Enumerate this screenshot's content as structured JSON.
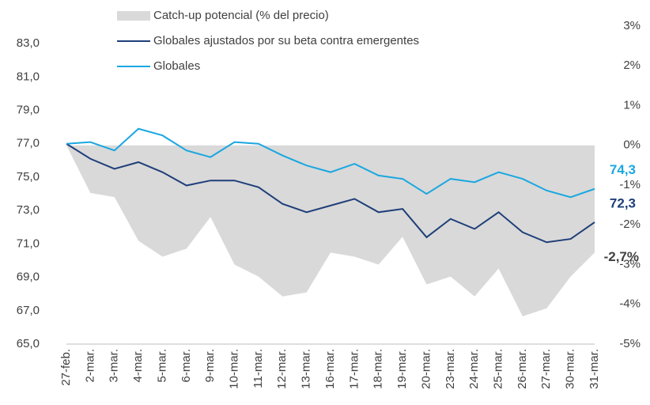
{
  "chart_data": {
    "type": "line",
    "categories": [
      "27-feb.",
      "2-mar.",
      "3-mar.",
      "4-mar.",
      "5-mar.",
      "6-mar.",
      "9-mar.",
      "10-mar.",
      "11-mar.",
      "12-mar.",
      "13-mar.",
      "16-mar.",
      "17-mar.",
      "18-mar.",
      "19-mar.",
      "20-mar.",
      "23-mar.",
      "24-mar.",
      "25-mar.",
      "26-mar.",
      "27-mar.",
      "30-mar.",
      "31-mar."
    ],
    "series": [
      {
        "name": "Catch-up potencial (% del precio)",
        "type": "area",
        "axis": "y2",
        "color": "#d9d9d9",
        "values": [
          0,
          -1.2,
          -1.3,
          -2.4,
          -2.8,
          -2.6,
          -1.8,
          -3.0,
          -3.3,
          -3.8,
          -3.7,
          -2.7,
          -2.8,
          -3.0,
          -2.3,
          -3.5,
          -3.3,
          -3.8,
          -3.1,
          -4.3,
          -4.1,
          -3.3,
          -2.7
        ],
        "value_labels": [
          null,
          null,
          null,
          null,
          null,
          null,
          null,
          null,
          null,
          null,
          null,
          null,
          null,
          null,
          null,
          null,
          null,
          null,
          null,
          null,
          null,
          null,
          "-2,7%"
        ]
      },
      {
        "name": "Globales ajustados por su beta contra emergentes",
        "type": "line",
        "color": "#1f3f7a",
        "values": [
          77.0,
          76.1,
          75.5,
          75.9,
          75.3,
          74.5,
          74.8,
          74.8,
          74.4,
          73.4,
          72.9,
          73.3,
          73.7,
          72.9,
          73.1,
          71.4,
          72.5,
          71.9,
          72.9,
          71.7,
          71.1,
          71.3,
          72.3
        ],
        "value_labels": [
          null,
          null,
          null,
          null,
          null,
          null,
          null,
          null,
          null,
          null,
          null,
          null,
          null,
          null,
          null,
          null,
          null,
          null,
          null,
          null,
          null,
          null,
          "72,3"
        ]
      },
      {
        "name": "Globales",
        "type": "line",
        "color": "#1aa7e0",
        "values": [
          77.0,
          77.1,
          76.6,
          77.9,
          77.5,
          76.6,
          76.2,
          77.1,
          77.0,
          76.3,
          75.7,
          75.3,
          75.8,
          75.1,
          74.9,
          74.0,
          74.9,
          74.7,
          75.3,
          74.9,
          74.2,
          73.8,
          74.3
        ],
        "value_labels": [
          null,
          null,
          null,
          null,
          null,
          null,
          null,
          null,
          null,
          null,
          null,
          null,
          null,
          null,
          null,
          null,
          null,
          null,
          null,
          null,
          null,
          null,
          "74,3"
        ]
      }
    ],
    "ylim": [
      65,
      84.05
    ],
    "yticks": [
      {
        "value": 65,
        "label": "65,0"
      },
      {
        "value": 67,
        "label": "67,0"
      },
      {
        "value": 69,
        "label": "69,0"
      },
      {
        "value": 71,
        "label": "71,0"
      },
      {
        "value": 73,
        "label": "73,0"
      },
      {
        "value": 75,
        "label": "75,0"
      },
      {
        "value": 77,
        "label": "77,0"
      },
      {
        "value": 79,
        "label": "79,0"
      },
      {
        "value": 81,
        "label": "81,0"
      },
      {
        "value": 83,
        "label": "83,0"
      }
    ],
    "y2lim": [
      -5,
      3
    ],
    "y2ticks": [
      {
        "value": -5,
        "label": "-5%"
      },
      {
        "value": -4,
        "label": "-4%"
      },
      {
        "value": -3,
        "label": "-3%"
      },
      {
        "value": -2,
        "label": "-2%"
      },
      {
        "value": -1,
        "label": "-1%"
      },
      {
        "value": 0,
        "label": "0%"
      },
      {
        "value": 1,
        "label": "1%"
      },
      {
        "value": 2,
        "label": "2%"
      },
      {
        "value": 3,
        "label": "3%"
      }
    ],
    "legend": "top"
  }
}
